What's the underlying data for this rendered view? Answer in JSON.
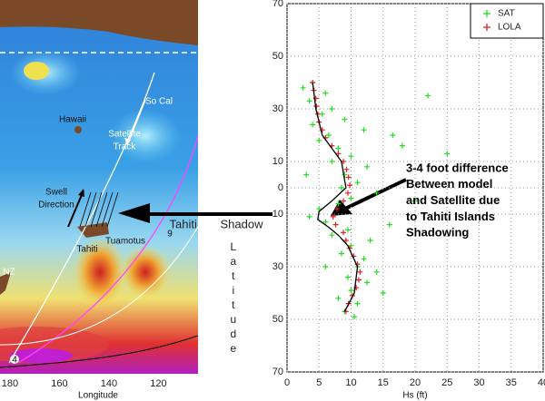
{
  "map": {
    "labels": [
      "So Cal",
      "Hawaii",
      "Satellite",
      "Track",
      "Swell",
      "Direction",
      "Tuamotus",
      "Tahiti",
      "NZ",
      "9",
      "4"
    ],
    "xticks": [
      180,
      160,
      140,
      120
    ],
    "xlim": [
      184,
      104
    ],
    "xlabel": "Longitude",
    "shadow_label": "Tahiti Shadow"
  },
  "chart_data": {
    "type": "scatter",
    "xlabel": "Hs (ft)",
    "ylabel": "Latitude",
    "xlim": [
      0,
      40
    ],
    "ylim": [
      -70,
      70
    ],
    "xticks": [
      0,
      5,
      10,
      15,
      20,
      25,
      30,
      35,
      40
    ],
    "yticks": [
      {
        "value": 70,
        "label": "70"
      },
      {
        "value": 50,
        "label": "50"
      },
      {
        "value": 30,
        "label": "30"
      },
      {
        "value": 10,
        "label": "10"
      },
      0,
      {
        "value": -10,
        "label": "10"
      },
      {
        "value": -30,
        "label": "30"
      },
      {
        "value": -50,
        "label": "50"
      },
      {
        "value": -70,
        "label": "70"
      }
    ],
    "grid": true,
    "legend": "upper right",
    "annotation": [
      "3-4 foot difference",
      "Between model",
      "and Satellite due",
      "to Tahiti Islands",
      "Shadowing"
    ],
    "series": [
      {
        "name": "SAT",
        "color": "#22dd22",
        "marker": "plus",
        "x": [
          4,
          2.5,
          6,
          3.5,
          7,
          5.5,
          9,
          4,
          12,
          6.5,
          5,
          8,
          10,
          7,
          12.5,
          9,
          11,
          8.5,
          14,
          10,
          8,
          5,
          3.5,
          6,
          16,
          9.5,
          7,
          13,
          10,
          8.5,
          12,
          11,
          14,
          9.5,
          12.5,
          10,
          8,
          11,
          9,
          10.5,
          20,
          22,
          18,
          25,
          15,
          16.5,
          6,
          3
        ],
        "y": [
          40,
          38,
          36,
          33,
          30,
          28,
          26,
          24,
          22,
          20,
          18,
          15,
          12,
          10,
          8,
          5,
          2,
          0,
          -2,
          -4,
          -6,
          -8,
          -11,
          -13,
          -14,
          -16,
          -18,
          -20,
          -22,
          -25,
          -27,
          -30,
          -32,
          -34,
          -36,
          -39,
          -42,
          -44,
          -47,
          -49,
          -5,
          35,
          16,
          13,
          -40,
          20,
          -30,
          5
        ]
      },
      {
        "name": "LOLA",
        "color": "#dd2222",
        "marker": "plus",
        "x": [
          4.0,
          4.2,
          4.5,
          4.6,
          4.8,
          5.0,
          5.5,
          6.0,
          7.0,
          8.0,
          8.8,
          9.3,
          9.6,
          9.8,
          9.5,
          8.8,
          7.8,
          7.2,
          7.6,
          8.8,
          9.2,
          9.8,
          10.4,
          11.0,
          11.4,
          11.2,
          10.8,
          10.2,
          9.6,
          9.2
        ],
        "y": [
          40,
          37,
          34,
          31,
          28,
          25,
          22,
          19,
          16,
          13,
          10,
          7,
          4,
          1,
          -2,
          -5,
          -8,
          -11,
          -14,
          -17,
          -20,
          -23,
          -26,
          -29,
          -32,
          -35,
          -38,
          -41,
          -44,
          -47
        ]
      },
      {
        "color": "#000000",
        "marker": "line",
        "x": [
          4,
          4.5,
          5.5,
          8.5,
          9.2,
          7,
          5,
          4.8,
          6.5,
          8,
          9.5,
          11,
          10.5,
          9
        ],
        "y": [
          40,
          30,
          20,
          10,
          0,
          -5,
          -9,
          -12,
          -15,
          -18,
          -22,
          -30,
          -40,
          -47
        ]
      }
    ]
  }
}
